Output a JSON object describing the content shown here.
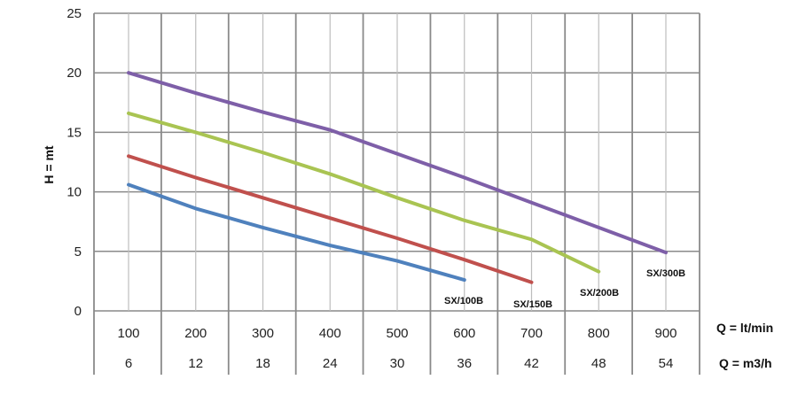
{
  "chart_data": {
    "type": "line",
    "ylabel": "H = mt",
    "ylim": [
      0,
      25
    ],
    "yticks": [
      "0",
      "5",
      "10",
      "15",
      "20",
      "25"
    ],
    "grid": true,
    "x": [
      100,
      200,
      300,
      400,
      500,
      600,
      700,
      800,
      900
    ],
    "xlabel_rows": [
      {
        "label": "Q = lt/min",
        "ticks": [
          "100",
          "200",
          "300",
          "400",
          "500",
          "600",
          "700",
          "800",
          "900"
        ]
      },
      {
        "label": "Q = m3/h",
        "ticks": [
          "6",
          "12",
          "18",
          "24",
          "30",
          "36",
          "42",
          "48",
          "54"
        ]
      }
    ],
    "series": [
      {
        "name": "SX/100B",
        "color": "#4f81bd",
        "x": [
          100,
          200,
          300,
          400,
          500,
          600
        ],
        "values": [
          10.6,
          8.6,
          7.0,
          5.5,
          4.2,
          2.6
        ]
      },
      {
        "name": "SX/150B",
        "color": "#c0504d",
        "x": [
          100,
          200,
          300,
          400,
          500,
          600,
          700
        ],
        "values": [
          13.0,
          11.2,
          9.5,
          7.8,
          6.1,
          4.3,
          2.4
        ]
      },
      {
        "name": "SX/200B",
        "color": "#a9c452",
        "x": [
          100,
          200,
          300,
          400,
          500,
          600,
          700,
          800
        ],
        "values": [
          16.6,
          15.0,
          13.3,
          11.5,
          9.5,
          7.6,
          6.0,
          3.3
        ]
      },
      {
        "name": "SX/300B",
        "color": "#7e5fa8",
        "x": [
          100,
          200,
          300,
          400,
          500,
          600,
          700,
          800,
          900
        ],
        "values": [
          20.0,
          18.3,
          16.7,
          15.2,
          13.2,
          11.2,
          9.1,
          7.0,
          4.9
        ]
      }
    ]
  }
}
